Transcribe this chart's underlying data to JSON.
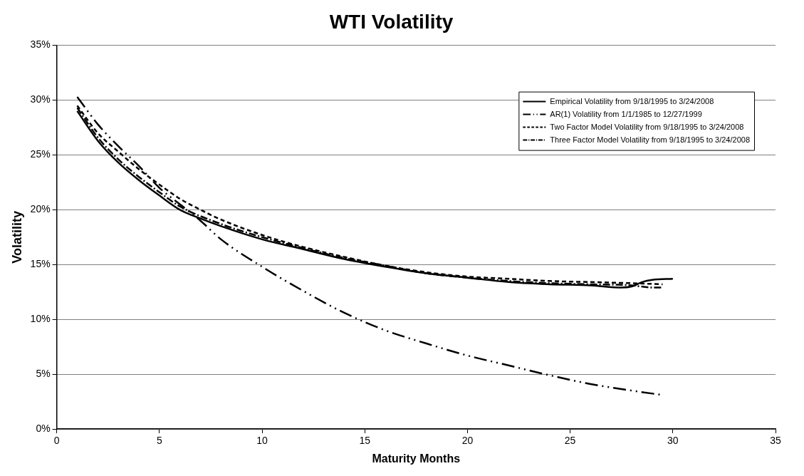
{
  "chart_data": {
    "type": "line",
    "title": "WTI Volatility",
    "xlabel": "Maturity Months",
    "ylabel": "Volatility",
    "xlim": [
      0,
      35
    ],
    "xticks": [
      0,
      5,
      10,
      15,
      20,
      25,
      30,
      35
    ],
    "ylim": [
      0,
      35
    ],
    "yticks": [
      {
        "value": 0,
        "label": "0%"
      },
      {
        "value": 5,
        "label": "5%"
      },
      {
        "value": 10,
        "label": "10%"
      },
      {
        "value": 15,
        "label": "15%"
      },
      {
        "value": 20,
        "label": "20%"
      },
      {
        "value": 25,
        "label": "25%"
      },
      {
        "value": 30,
        "label": "30%"
      },
      {
        "value": 35,
        "label": "35%"
      }
    ],
    "grid": "y",
    "legend": "top right",
    "marker": "none",
    "series": [
      {
        "name": "Empirical Volatility from 9/18/1995 to 3/24/2008",
        "color": "#000000",
        "line_style": "solid",
        "x": [
          1,
          2,
          3,
          4,
          5,
          6,
          7,
          8,
          10,
          12,
          14,
          16,
          18,
          20,
          22,
          24,
          26,
          27.5,
          28,
          28.5,
          29,
          30
        ],
        "values": [
          29,
          26.3,
          24.3,
          22.7,
          21.3,
          20,
          19.2,
          18.5,
          17.3,
          16.4,
          15.5,
          14.8,
          14.2,
          13.8,
          13.4,
          13.2,
          13.1,
          12.9,
          13,
          13.4,
          13.6,
          13.7
        ]
      },
      {
        "name": "AR(1) Volatility from 1/1/1985 to 12/27/1999",
        "color": "#000000",
        "line_style": "dashdotdot",
        "x": [
          1,
          2,
          3,
          4,
          5,
          6,
          7,
          8,
          10,
          12,
          14,
          16,
          18,
          20,
          22,
          24,
          26,
          28,
          29.5
        ],
        "values": [
          30.3,
          27.8,
          25.8,
          24,
          22,
          20.5,
          19,
          17.3,
          14.8,
          12.6,
          10.6,
          9,
          7.8,
          6.7,
          5.8,
          4.9,
          4.1,
          3.5,
          3.1
        ]
      },
      {
        "name": "Two Factor Model Volatility from 9/18/1995 to 3/24/2008",
        "color": "#000000",
        "line_style": "dashed",
        "x": [
          1,
          2,
          3,
          4,
          5,
          6,
          7,
          8,
          10,
          12,
          14,
          16,
          18,
          20,
          22,
          24,
          26,
          28,
          29.5
        ],
        "values": [
          29.5,
          27,
          25.3,
          23.7,
          22.3,
          21,
          20,
          19.1,
          17.7,
          16.6,
          15.7,
          14.9,
          14.3,
          13.9,
          13.7,
          13.5,
          13.4,
          13.3,
          13.2
        ]
      },
      {
        "name": "Three Factor Model Volatility from 9/18/1995 to 3/24/2008",
        "color": "#000000",
        "line_style": "dashdot",
        "x": [
          1,
          2,
          3,
          4,
          5,
          6,
          8,
          10,
          12,
          14,
          16,
          18,
          20,
          22,
          24,
          26,
          28,
          29,
          29.5
        ],
        "values": [
          29.3,
          26.6,
          24.6,
          23,
          21.6,
          20.3,
          18.7,
          17.5,
          16.5,
          15.6,
          14.9,
          14.2,
          13.8,
          13.5,
          13.3,
          13.2,
          13.1,
          12.9,
          12.9
        ]
      }
    ]
  }
}
